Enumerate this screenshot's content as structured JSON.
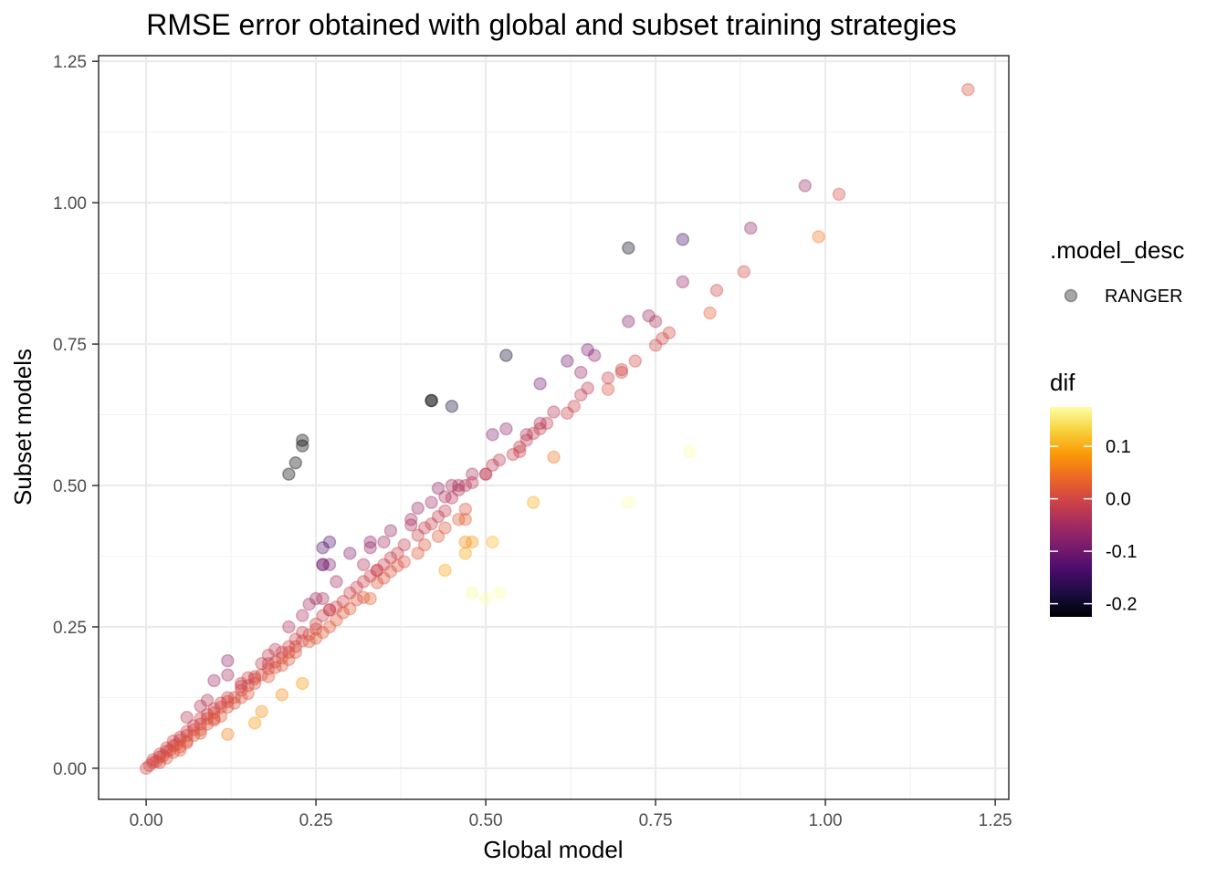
{
  "chart_data": {
    "type": "scatter",
    "title": "RMSE error obtained with global and subset training strategies",
    "xlabel": "Global model",
    "ylabel": "Subset models",
    "xlim": [
      -0.07,
      1.27
    ],
    "ylim": [
      -0.055,
      1.26
    ],
    "x_ticks": [
      0,
      0.25,
      0.5,
      0.75,
      1,
      1.25
    ],
    "x_tick_labels": [
      "0.00",
      "0.25",
      "0.50",
      "0.75",
      "1.00",
      "1.25"
    ],
    "y_ticks": [
      0,
      0.25,
      0.5,
      0.75,
      1,
      1.25
    ],
    "y_tick_labels": [
      "0.00",
      "0.25",
      "0.50",
      "0.75",
      "1.00",
      "1.25"
    ],
    "grid": true,
    "point_alpha": 0.35,
    "legend_placement": "right",
    "shape_legend": {
      "title": ".model_desc",
      "entries": [
        "RANGER"
      ]
    },
    "color_legend": {
      "title": "dif",
      "range": [
        -0.225,
        0.175
      ],
      "ticks": [
        0.1,
        0.0,
        -0.1,
        -0.2
      ],
      "tick_labels": [
        "0.1",
        "0.0",
        "-0.1",
        "-0.2"
      ],
      "colormap": "inferno",
      "colors": [
        "#000004",
        "#1b0c41",
        "#4a0c6b",
        "#781c6d",
        "#a52c60",
        "#cf4446",
        "#ed6925",
        "#fb9b06",
        "#f7d13d",
        "#fcffa4"
      ]
    },
    "series": [
      {
        "name": "RANGER",
        "x": [
          0.0,
          0.005,
          0.01,
          0.015,
          0.02,
          0.025,
          0.03,
          0.035,
          0.04,
          0.045,
          0.05,
          0.06,
          0.07,
          0.08,
          0.09,
          0.1,
          0.11,
          0.12,
          0.13,
          0.14,
          0.15,
          0.16,
          0.17,
          0.18,
          0.19,
          0.2,
          0.21,
          0.22,
          0.23,
          0.24,
          0.25,
          0.01,
          0.02,
          0.03,
          0.04,
          0.05,
          0.06,
          0.07,
          0.08,
          0.09,
          0.1,
          0.11,
          0.12,
          0.14,
          0.16,
          0.18,
          0.2,
          0.21,
          0.22,
          0.23,
          0.25,
          0.26,
          0.27,
          0.28,
          0.29,
          0.3,
          0.31,
          0.32,
          0.33,
          0.34,
          0.35,
          0.36,
          0.37,
          0.38,
          0.4,
          0.41,
          0.42,
          0.43,
          0.44,
          0.45,
          0.46,
          0.47,
          0.48,
          0.5,
          0.51,
          0.52,
          0.54,
          0.55,
          0.56,
          0.57,
          0.58,
          0.59,
          0.62,
          0.63,
          0.64,
          0.65,
          0.68,
          0.7,
          0.72,
          0.75,
          0.76,
          0.77,
          0.83,
          0.84,
          0.88,
          0.03,
          0.05,
          0.07,
          0.09,
          0.12,
          0.15,
          0.18,
          0.21,
          0.24,
          0.27,
          0.3,
          0.32,
          0.35,
          0.38,
          0.41,
          0.44,
          0.47,
          0.04,
          0.06,
          0.08,
          0.1,
          0.13,
          0.16,
          0.19,
          0.22,
          0.26,
          0.29,
          0.31,
          0.34,
          0.37,
          0.43,
          0.46,
          0.06,
          0.1,
          0.14,
          0.25,
          0.33,
          0.4,
          0.47,
          0.02,
          0.05,
          0.08,
          0.11,
          0.2,
          0.28,
          0.36,
          0.06,
          0.09,
          0.1,
          0.12,
          0.14,
          0.17,
          0.19,
          0.21,
          0.24,
          0.25,
          0.26,
          0.28,
          0.3,
          0.33,
          0.36,
          0.39,
          0.42,
          0.44,
          0.46,
          0.48,
          0.51,
          0.53,
          0.56,
          0.58,
          0.6,
          0.64,
          0.66,
          0.71,
          0.74,
          0.08,
          0.12,
          0.15,
          0.18,
          0.23,
          0.27,
          0.32,
          0.35,
          0.4,
          0.43,
          0.27,
          0.33,
          0.39,
          0.45,
          0.5,
          0.55,
          0.62,
          0.65,
          0.7,
          0.75,
          0.79,
          0.89,
          0.97,
          0.42,
          0.58,
          0.26,
          0.26,
          0.27,
          0.23,
          0.21,
          0.22,
          0.23,
          0.26,
          0.34,
          0.47,
          0.48,
          0.51,
          0.57,
          0.71,
          0.8,
          1.21,
          0.99,
          1.02,
          0.44,
          0.5,
          0.52,
          0.48,
          0.47,
          0.6,
          0.68,
          0.16,
          0.2,
          0.23,
          0.17,
          0.12,
          0.42,
          0.45,
          0.53,
          0.71,
          0.79
        ],
        "y": [
          0.0,
          0.005,
          0.01,
          0.012,
          0.02,
          0.022,
          0.03,
          0.032,
          0.04,
          0.042,
          0.05,
          0.058,
          0.068,
          0.078,
          0.088,
          0.098,
          0.108,
          0.118,
          0.125,
          0.138,
          0.146,
          0.158,
          0.165,
          0.176,
          0.188,
          0.195,
          0.205,
          0.215,
          0.225,
          0.236,
          0.246,
          0.015,
          0.025,
          0.036,
          0.048,
          0.055,
          0.065,
          0.075,
          0.088,
          0.095,
          0.105,
          0.115,
          0.125,
          0.145,
          0.162,
          0.185,
          0.205,
          0.215,
          0.228,
          0.24,
          0.255,
          0.27,
          0.28,
          0.285,
          0.295,
          0.31,
          0.32,
          0.33,
          0.34,
          0.35,
          0.36,
          0.372,
          0.38,
          0.395,
          0.412,
          0.425,
          0.432,
          0.445,
          0.455,
          0.478,
          0.492,
          0.5,
          0.505,
          0.52,
          0.536,
          0.545,
          0.555,
          0.568,
          0.58,
          0.592,
          0.6,
          0.61,
          0.628,
          0.64,
          0.66,
          0.672,
          0.69,
          0.705,
          0.72,
          0.748,
          0.76,
          0.77,
          0.805,
          0.845,
          0.878,
          0.018,
          0.038,
          0.058,
          0.078,
          0.108,
          0.132,
          0.162,
          0.192,
          0.224,
          0.25,
          0.282,
          0.302,
          0.336,
          0.365,
          0.395,
          0.425,
          0.458,
          0.028,
          0.048,
          0.068,
          0.088,
          0.115,
          0.15,
          0.178,
          0.205,
          0.24,
          0.275,
          0.298,
          0.328,
          0.358,
          0.41,
          0.44,
          0.045,
          0.085,
          0.125,
          0.23,
          0.3,
          0.38,
          0.44,
          0.01,
          0.032,
          0.062,
          0.092,
          0.182,
          0.262,
          0.348,
          0.09,
          0.12,
          0.155,
          0.165,
          0.15,
          0.185,
          0.21,
          0.25,
          0.29,
          0.3,
          0.3,
          0.33,
          0.38,
          0.39,
          0.42,
          0.44,
          0.47,
          0.48,
          0.5,
          0.52,
          0.59,
          0.6,
          0.59,
          0.61,
          0.63,
          0.7,
          0.73,
          0.79,
          0.8,
          0.11,
          0.19,
          0.16,
          0.2,
          0.27,
          0.28,
          0.36,
          0.4,
          0.46,
          0.495,
          0.4,
          0.4,
          0.43,
          0.5,
          0.52,
          0.56,
          0.72,
          0.74,
          0.7,
          0.79,
          0.935,
          0.955,
          1.03,
          0.65,
          0.68,
          0.36,
          0.36,
          0.36,
          0.57,
          0.52,
          0.54,
          0.58,
          0.39,
          0.35,
          0.38,
          0.4,
          0.4,
          0.47,
          0.47,
          0.56,
          1.2,
          0.94,
          1.015,
          0.35,
          0.3,
          0.31,
          0.31,
          0.4,
          0.55,
          0.67,
          0.08,
          0.13,
          0.15,
          0.1,
          0.06,
          0.65,
          0.64,
          0.73,
          0.92,
          0.86
        ],
        "dif": [
          0.0,
          0.0,
          0.0,
          0.003,
          0.0,
          0.003,
          0.0,
          0.003,
          0.0,
          0.003,
          0.0,
          0.002,
          0.002,
          0.002,
          0.002,
          0.002,
          0.002,
          0.002,
          0.005,
          0.002,
          0.004,
          0.002,
          0.005,
          0.004,
          0.002,
          0.005,
          0.005,
          0.005,
          0.005,
          0.004,
          0.004,
          -0.005,
          -0.005,
          -0.006,
          -0.008,
          -0.005,
          -0.005,
          -0.005,
          -0.008,
          -0.005,
          -0.005,
          -0.005,
          -0.005,
          -0.005,
          -0.002,
          -0.005,
          -0.005,
          -0.005,
          -0.008,
          -0.01,
          -0.005,
          -0.01,
          -0.01,
          -0.005,
          -0.005,
          -0.01,
          -0.01,
          -0.01,
          -0.01,
          -0.01,
          -0.01,
          -0.012,
          -0.01,
          -0.015,
          -0.012,
          -0.015,
          -0.012,
          -0.015,
          -0.015,
          -0.028,
          -0.032,
          -0.03,
          -0.025,
          -0.02,
          -0.026,
          -0.025,
          -0.015,
          -0.018,
          -0.02,
          -0.022,
          -0.02,
          -0.02,
          -0.008,
          -0.01,
          -0.02,
          -0.022,
          -0.01,
          -0.005,
          0.0,
          0.002,
          0.0,
          0.0,
          0.025,
          -0.005,
          0.002,
          0.012,
          0.012,
          0.012,
          0.012,
          0.012,
          0.018,
          0.018,
          0.018,
          0.016,
          0.02,
          0.018,
          0.018,
          0.014,
          0.015,
          0.015,
          0.015,
          0.012,
          0.012,
          0.012,
          0.012,
          0.012,
          0.015,
          0.01,
          0.012,
          0.015,
          0.02,
          0.015,
          0.012,
          0.012,
          0.012,
          0.02,
          0.02,
          0.015,
          0.015,
          0.015,
          0.02,
          0.03,
          0.02,
          0.03,
          0.01,
          0.018,
          0.018,
          0.018,
          0.018,
          0.018,
          0.012,
          -0.03,
          -0.03,
          -0.055,
          -0.045,
          -0.01,
          -0.015,
          -0.02,
          -0.04,
          -0.05,
          -0.05,
          -0.04,
          -0.05,
          -0.08,
          -0.06,
          -0.06,
          -0.05,
          -0.05,
          -0.04,
          -0.04,
          -0.04,
          -0.08,
          -0.07,
          -0.03,
          -0.03,
          -0.03,
          -0.06,
          -0.07,
          -0.08,
          -0.06,
          -0.03,
          -0.07,
          -0.01,
          -0.02,
          -0.04,
          -0.01,
          -0.04,
          -0.05,
          -0.06,
          -0.065,
          -0.13,
          -0.07,
          -0.04,
          -0.05,
          -0.02,
          -0.01,
          -0.1,
          -0.09,
          0.0,
          -0.04,
          -0.145,
          -0.065,
          -0.06,
          -0.23,
          -0.1,
          -0.1,
          -0.1,
          -0.09,
          -0.34,
          -0.31,
          -0.32,
          -0.35,
          -0.13,
          -0.01,
          0.09,
          0.08,
          0.11,
          0.1,
          0.24,
          0.24,
          0.01,
          0.05,
          0.005,
          0.09,
          0.2,
          0.21,
          0.17,
          0.07,
          0.05,
          0.01,
          0.08,
          0.07,
          0.08,
          0.07,
          0.06,
          -0.23,
          -0.19,
          -0.2,
          -0.21,
          -0.07
        ]
      }
    ]
  }
}
